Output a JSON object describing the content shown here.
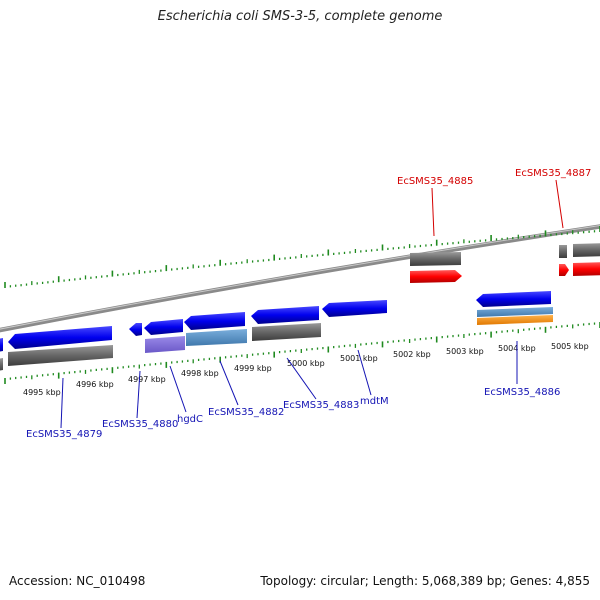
{
  "title": "Escherichia coli SMS-3-5, complete genome",
  "footer": {
    "accession": "Accession: NC_010498",
    "summary": "Topology: circular; Length: 5,068,389 bp; Genes: 4,855"
  },
  "colors": {
    "tick": "#1f8a1f",
    "backbone": "#8a8a8a",
    "forward_gene": "#ff0000",
    "reverse_gene": "#0000ee",
    "gene_track": "#666666",
    "label_forward": "#d40000",
    "label_reverse": "#1414b4"
  },
  "map": {
    "kbp_labels": [
      "4995 kbp",
      "4996 kbp",
      "4997 kbp",
      "4998 kbp",
      "4999 kbp",
      "5000 kbp",
      "5001 kbp",
      "5002 kbp",
      "5003 kbp",
      "5004 kbp",
      "5005 kbp"
    ],
    "forward_genes": [
      "EcSMS35_4885",
      "EcSMS35_4887"
    ],
    "reverse_genes": [
      "EcSMS35_4879",
      "EcSMS35_4880",
      "hgdC",
      "EcSMS35_4882",
      "EcSMS35_4883",
      "mdtM",
      "EcSMS35_4886"
    ]
  }
}
